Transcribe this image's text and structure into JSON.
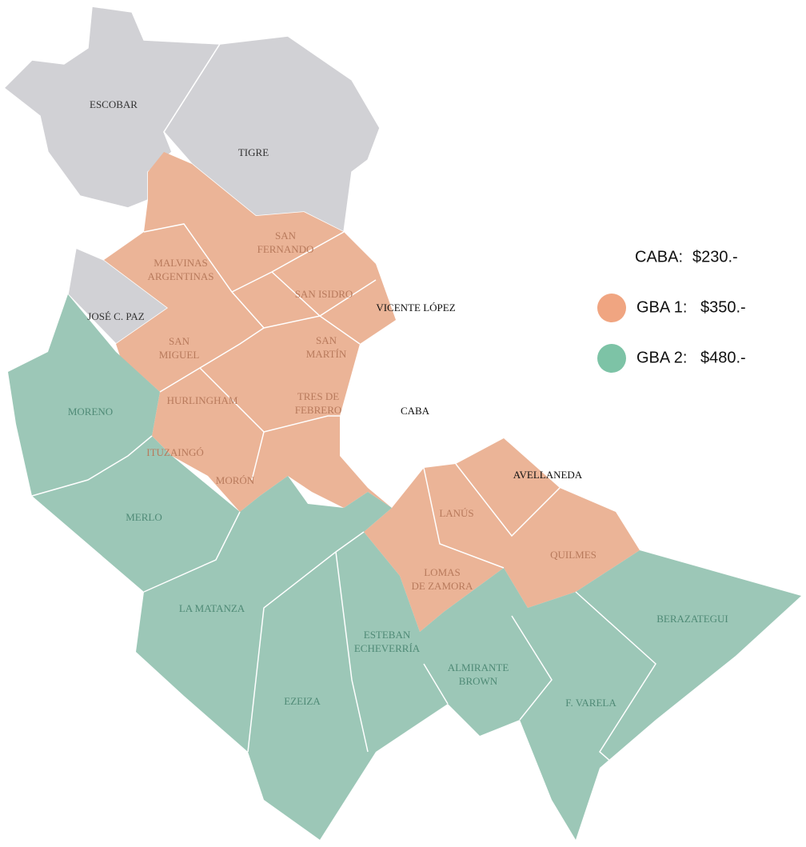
{
  "regions": [
    [
      "ESCOBAR"
    ],
    [
      "TIGRE"
    ],
    [
      "JOSÉ C. PAZ"
    ],
    [
      "SAN",
      "FERNANDO"
    ],
    [
      "MALVINAS",
      "ARGENTINAS"
    ],
    [
      "SAN ISIDRO"
    ],
    [
      "VICENTE LÓPEZ"
    ],
    [
      "SAN",
      "MIGUEL"
    ],
    [
      "SAN",
      "MARTÍN"
    ],
    [
      "HURLINGHAM"
    ],
    [
      "TRES DE",
      "FEBRERO"
    ],
    [
      "CABA"
    ],
    [
      "ITUZAINGÓ"
    ],
    [
      "MORÓN"
    ],
    [
      "MORENO"
    ],
    [
      "MERLO"
    ],
    [
      "AVELLANEDA"
    ],
    [
      "LANÚS"
    ],
    [
      "QUILMES"
    ],
    [
      "LOMAS",
      "DE ZAMORA"
    ],
    [
      "LA MATANZA"
    ],
    [
      "ESTEBAN",
      "ECHEVERRÍA"
    ],
    [
      "ALMIRANTE",
      "BROWN"
    ],
    [
      "EZEIZA"
    ],
    [
      "F. VARELA"
    ],
    [
      "BERAZATEGUI"
    ]
  ],
  "legend": [
    {
      "zone": "CABA:",
      "price": "$230.-"
    },
    {
      "zone": "GBA 1:",
      "price": "$350.-",
      "color": "#f0a581"
    },
    {
      "zone": "GBA 2:",
      "price": "$480.-",
      "color": "#7dc3a6"
    }
  ]
}
